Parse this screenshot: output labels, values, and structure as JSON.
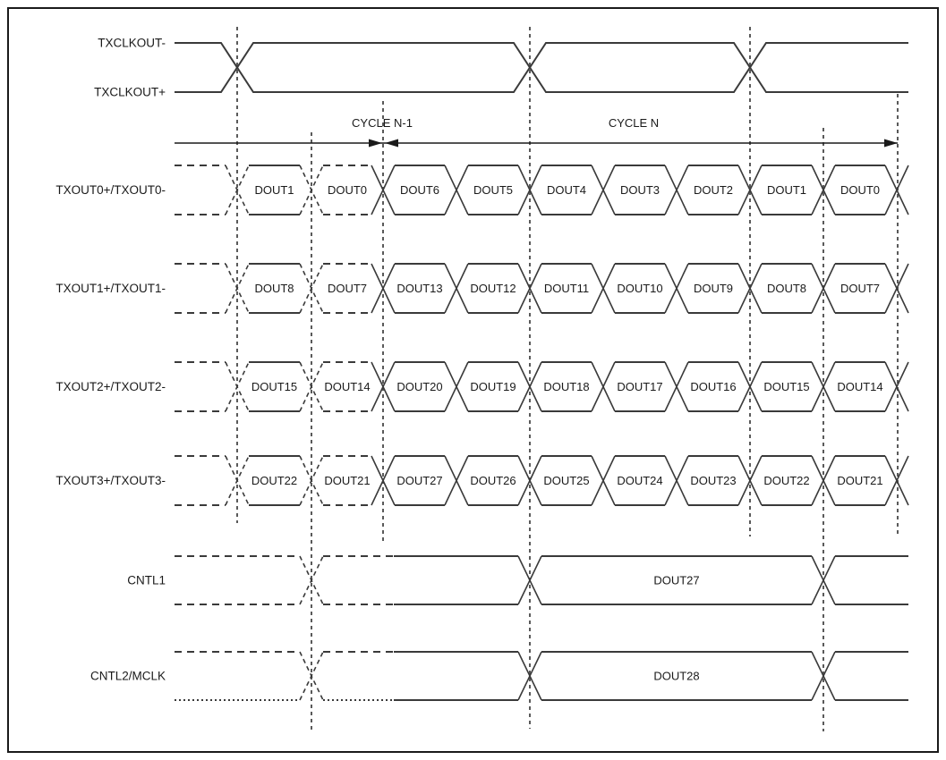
{
  "clock": {
    "top_label": "TXCLKOUT-",
    "bottom_label": "TXCLKOUT+"
  },
  "cycles": {
    "previous_label": "CYCLE N-1",
    "current_label": "CYCLE N"
  },
  "buses": [
    {
      "label": "TXOUT0+/TXOUT0-",
      "cells": [
        "DOUT1",
        "DOUT0",
        "DOUT6",
        "DOUT5",
        "DOUT4",
        "DOUT3",
        "DOUT2",
        "DOUT1",
        "DOUT0"
      ]
    },
    {
      "label": "TXOUT1+/TXOUT1-",
      "cells": [
        "DOUT8",
        "DOUT7",
        "DOUT13",
        "DOUT12",
        "DOUT11",
        "DOUT10",
        "DOUT9",
        "DOUT8",
        "DOUT7"
      ]
    },
    {
      "label": "TXOUT2+/TXOUT2-",
      "cells": [
        "DOUT15",
        "DOUT14",
        "DOUT20",
        "DOUT19",
        "DOUT18",
        "DOUT17",
        "DOUT16",
        "DOUT15",
        "DOUT14"
      ]
    },
    {
      "label": "TXOUT3+/TXOUT3-",
      "cells": [
        "DOUT22",
        "DOUT21",
        "DOUT27",
        "DOUT26",
        "DOUT25",
        "DOUT24",
        "DOUT23",
        "DOUT22",
        "DOUT21"
      ]
    }
  ],
  "controls": [
    {
      "label": "CNTL1",
      "cell": "DOUT27"
    },
    {
      "label": "CNTL2/MCLK",
      "cell": "DOUT28"
    }
  ],
  "colors": {
    "line": "#3a3a3a",
    "guide": "#5a5a5a",
    "text": "#1a1a1a",
    "border": "#1a1a1a",
    "background": "#ffffff"
  }
}
